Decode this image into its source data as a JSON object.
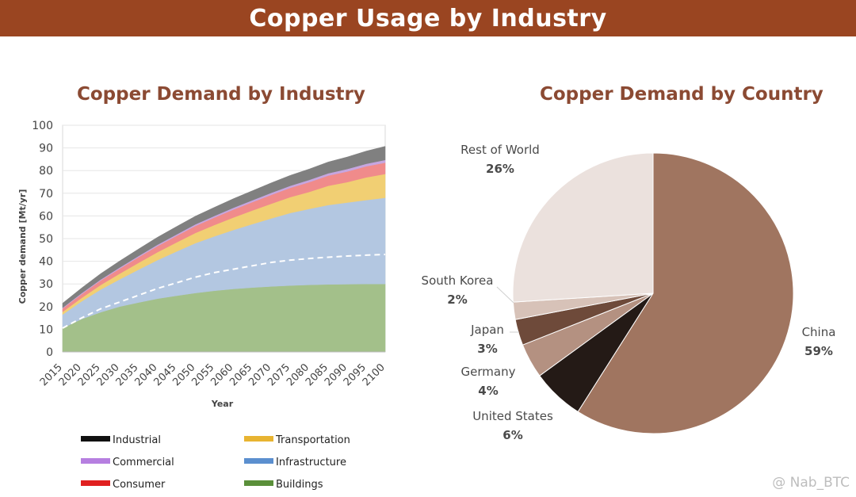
{
  "banner": {
    "title": "Copper Usage by Industry"
  },
  "watermark": "@ Nab_BTC",
  "chart_data": [
    {
      "type": "area",
      "stacked": true,
      "title": "Copper Demand by Industry",
      "xlabel": "Year",
      "ylabel": "Copper demand [Mt/yr]",
      "xlim": [
        2015,
        2100
      ],
      "ylim": [
        0,
        100
      ],
      "yticks": [
        0,
        10,
        20,
        30,
        40,
        50,
        60,
        70,
        80,
        90,
        100
      ],
      "x": [
        2015,
        2020,
        2025,
        2030,
        2035,
        2040,
        2045,
        2050,
        2055,
        2060,
        2065,
        2070,
        2075,
        2080,
        2085,
        2090,
        2095,
        2100
      ],
      "series": [
        {
          "name": "Buildings",
          "color": "#a3c08a",
          "values": [
            10.5,
            14.5,
            17.5,
            20,
            21.8,
            23.5,
            24.8,
            26,
            27,
            27.8,
            28.4,
            28.9,
            29.3,
            29.6,
            29.8,
            29.9,
            30,
            30
          ]
        },
        {
          "name": "Infrastructure",
          "color": "#b3c7e1",
          "values": [
            6,
            7.8,
            10,
            12,
            14.5,
            17,
            19.5,
            22,
            24,
            26,
            28,
            30,
            32,
            33.5,
            35,
            36,
            37,
            38
          ]
        },
        {
          "name": "Transportation",
          "color": "#f1cf73",
          "values": [
            1.2,
            1.5,
            2,
            2.5,
            3,
            3.5,
            4,
            4.5,
            5,
            5.5,
            6,
            6.5,
            7,
            7.5,
            8.5,
            9,
            10,
            10.5
          ]
        },
        {
          "name": "Consumer",
          "color": "#f08b8b",
          "values": [
            1.5,
            1.7,
            2,
            2.2,
            2.5,
            2.7,
            2.9,
            3.1,
            3.3,
            3.5,
            3.7,
            3.9,
            4.1,
            4.3,
            4.5,
            4.7,
            4.9,
            5
          ]
        },
        {
          "name": "Commercial",
          "color": "#c6a6e0",
          "values": [
            0.3,
            0.4,
            0.4,
            0.5,
            0.5,
            0.6,
            0.6,
            0.7,
            0.7,
            0.8,
            0.8,
            0.9,
            0.9,
            1,
            1,
            1.1,
            1.1,
            1.2
          ]
        },
        {
          "name": "Industrial",
          "color": "#808080",
          "values": [
            2,
            2.3,
            2.6,
            2.9,
            3.1,
            3.3,
            3.5,
            3.6,
            3.8,
            4,
            4.2,
            4.4,
            4.6,
            4.8,
            5,
            5.3,
            5.6,
            6
          ]
        }
      ],
      "dashed_line": {
        "values": [
          10.5,
          15,
          19,
          22,
          25,
          28,
          30.5,
          33,
          35,
          36.5,
          38,
          39.5,
          40.5,
          41.2,
          41.8,
          42.3,
          42.7,
          43
        ]
      },
      "legend_position": "bottom",
      "legend": [
        {
          "label": "Industrial",
          "color": "#111111"
        },
        {
          "label": "Transportation",
          "color": "#e8b431"
        },
        {
          "label": "Commercial",
          "color": "#b67fe0"
        },
        {
          "label": "Infrastructure",
          "color": "#5b8fcf"
        },
        {
          "label": "Consumer",
          "color": "#e02020"
        },
        {
          "label": "Buildings",
          "color": "#5a8f3a"
        }
      ]
    },
    {
      "type": "pie",
      "title": "Copper Demand by Country",
      "slices": [
        {
          "label": "China",
          "pct": "59%",
          "value": 59,
          "color": "#a07560"
        },
        {
          "label": "United States",
          "pct": "6%",
          "value": 6,
          "color": "#241a16"
        },
        {
          "label": "Germany",
          "pct": "4%",
          "value": 4,
          "color": "#b49181"
        },
        {
          "label": "Japan",
          "pct": "3%",
          "value": 3,
          "color": "#6e4a3a"
        },
        {
          "label": "South Korea",
          "pct": "2%",
          "value": 2,
          "color": "#d7c2b8"
        },
        {
          "label": "Rest of World",
          "pct": "26%",
          "value": 26,
          "color": "#ebe1dd"
        }
      ]
    }
  ]
}
